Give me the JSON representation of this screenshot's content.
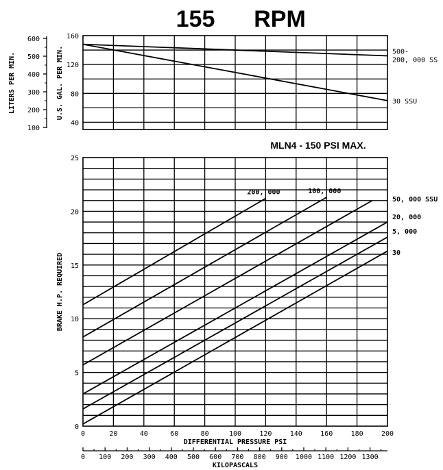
{
  "title_rpm_value": "155",
  "title_rpm_unit": "RPM",
  "chart_data": [
    {
      "type": "line",
      "title": "",
      "xlabel": "",
      "ylabel": "U.S. GAL. PER MIN.",
      "secondary_ylabel": "LITERS PER MIN.",
      "xlim": [
        0,
        200
      ],
      "ylim": [
        30,
        160
      ],
      "grid": true,
      "y_ticks": [
        "40",
        "80",
        "120",
        "160"
      ],
      "secondary_y_ticks": [
        "100",
        "200",
        "300",
        "400",
        "500",
        "600"
      ],
      "series": [
        {
          "name_lines": [
            "500-",
            "200, 000 SS"
          ],
          "x": [
            0,
            200
          ],
          "y": [
            148,
            132
          ]
        },
        {
          "name_lines": [
            "30 SSU"
          ],
          "x": [
            0,
            200
          ],
          "y": [
            148,
            70
          ]
        }
      ]
    },
    {
      "type": "line",
      "title": "MLN4 - 150 PSI MAX.",
      "xlabel": "DIFFERENTIAL PRESSURE PSI",
      "ylabel": "BRAKE H.P. REQUIRED",
      "secondary_xlabel": "KILOPASCALS",
      "xlim": [
        0,
        200
      ],
      "ylim": [
        0,
        25
      ],
      "grid": true,
      "x_ticks": [
        "0",
        "20",
        "40",
        "60",
        "80",
        "100",
        "120",
        "140",
        "160",
        "180",
        "200"
      ],
      "y_ticks": [
        "0",
        "5",
        "10",
        "15",
        "20",
        "25"
      ],
      "secondary_x_ticks": [
        "0",
        "100",
        "200",
        "300",
        "400",
        "500",
        "600",
        "700",
        "800",
        "900",
        "1000",
        "1100",
        "1200",
        "1300"
      ],
      "series": [
        {
          "name": "200, 000",
          "x": [
            0,
            120
          ],
          "y": [
            11.3,
            21.2
          ]
        },
        {
          "name": "100, 000",
          "x": [
            0,
            160
          ],
          "y": [
            8.3,
            21.3
          ]
        },
        {
          "name": "50, 000 SSU",
          "x": [
            0,
            190
          ],
          "y": [
            5.7,
            21.0
          ]
        },
        {
          "name": "20, 000",
          "x": [
            0,
            200
          ],
          "y": [
            3.0,
            19.0
          ]
        },
        {
          "name": "5, 000",
          "x": [
            0,
            200
          ],
          "y": [
            1.6,
            17.6
          ]
        },
        {
          "name": "30",
          "x": [
            0,
            200
          ],
          "y": [
            0.2,
            16.3
          ]
        }
      ]
    }
  ]
}
